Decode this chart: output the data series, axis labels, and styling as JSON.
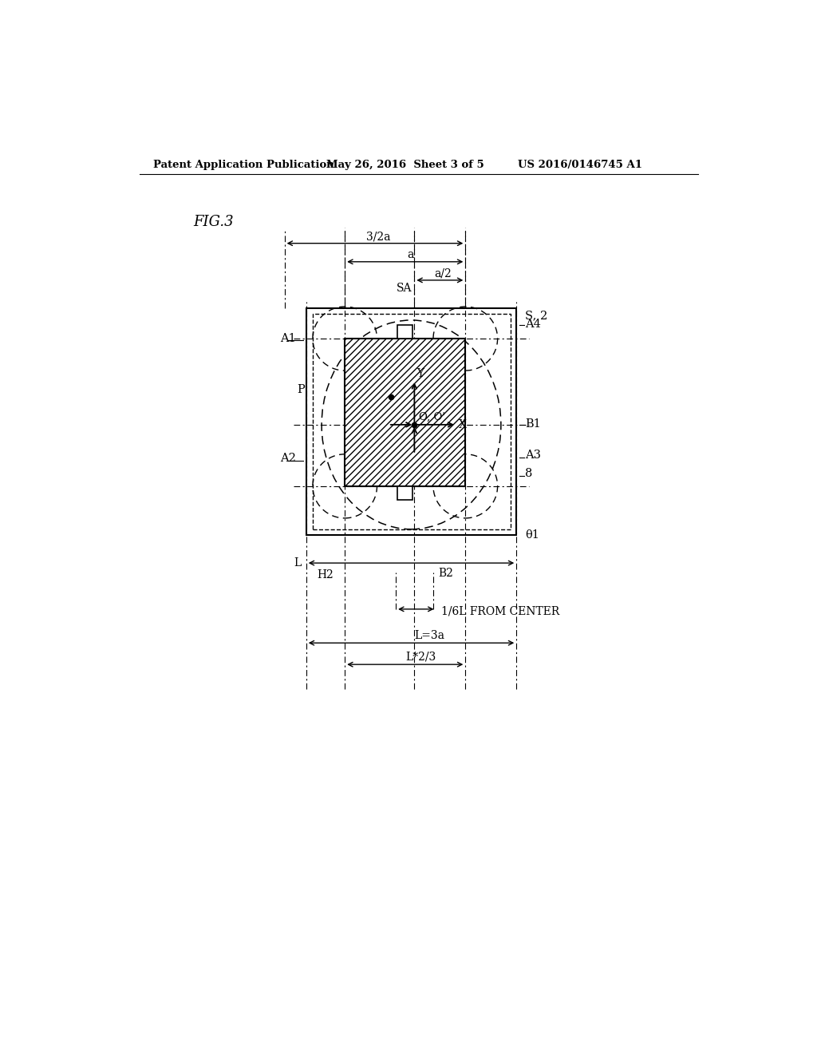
{
  "bg_color": "#ffffff",
  "header_left": "Patent Application Publication",
  "header_mid": "May 26, 2016  Sheet 3 of 5",
  "header_right": "US 2016/0146745 A1",
  "fig_label": "FIG.3",
  "line_color": "#000000"
}
